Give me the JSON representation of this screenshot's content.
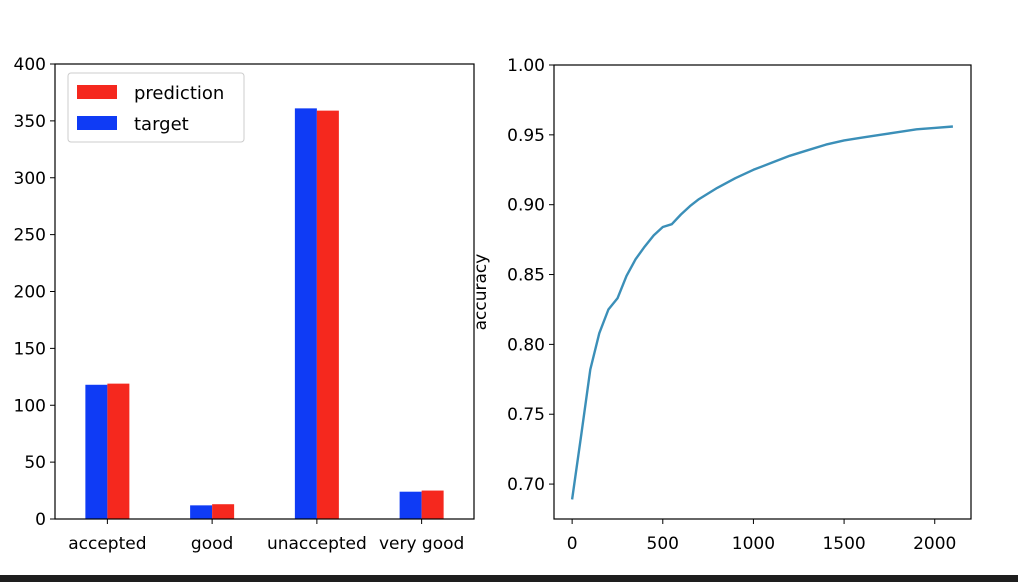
{
  "chart_data": [
    {
      "type": "bar",
      "categories": [
        "accepted",
        "good",
        "unaccepted",
        "very good"
      ],
      "series": [
        {
          "name": "target",
          "color": "#0f3bf5",
          "values": [
            118,
            12,
            361,
            24
          ]
        },
        {
          "name": "prediction",
          "color": "#f5281e",
          "values": [
            119,
            13,
            359,
            25
          ]
        }
      ],
      "legend_order": [
        "prediction",
        "target"
      ],
      "legend_position": "top-left",
      "ylim": [
        0,
        400
      ],
      "yticks": [
        0,
        50,
        100,
        150,
        200,
        250,
        300,
        350,
        400
      ],
      "ytick_labels": [
        "0",
        "50",
        "100",
        "150",
        "200",
        "250",
        "300",
        "350",
        "400"
      ],
      "grid": false
    },
    {
      "type": "line",
      "ylabel": "accuracy",
      "color": "#3b8fb8",
      "xlim": [
        -100,
        2200
      ],
      "ylim": [
        0.675,
        1.0
      ],
      "xticks": [
        0,
        500,
        1000,
        1500,
        2000
      ],
      "xtick_labels": [
        "0",
        "500",
        "1000",
        "1500",
        "2000"
      ],
      "yticks": [
        0.7,
        0.75,
        0.8,
        0.85,
        0.9,
        0.95,
        1.0
      ],
      "ytick_labels": [
        "0.70",
        "0.75",
        "0.80",
        "0.85",
        "0.90",
        "0.95",
        "1.00"
      ],
      "grid": false,
      "x": [
        0,
        50,
        100,
        150,
        200,
        250,
        300,
        350,
        400,
        450,
        500,
        550,
        600,
        650,
        700,
        800,
        900,
        1000,
        1100,
        1200,
        1300,
        1400,
        1500,
        1600,
        1700,
        1800,
        1900,
        2000,
        2100
      ],
      "y": [
        0.689,
        0.735,
        0.782,
        0.808,
        0.825,
        0.833,
        0.849,
        0.861,
        0.87,
        0.878,
        0.884,
        0.886,
        0.893,
        0.899,
        0.904,
        0.912,
        0.919,
        0.925,
        0.93,
        0.935,
        0.939,
        0.943,
        0.946,
        0.948,
        0.95,
        0.952,
        0.954,
        0.955,
        0.956
      ]
    }
  ]
}
